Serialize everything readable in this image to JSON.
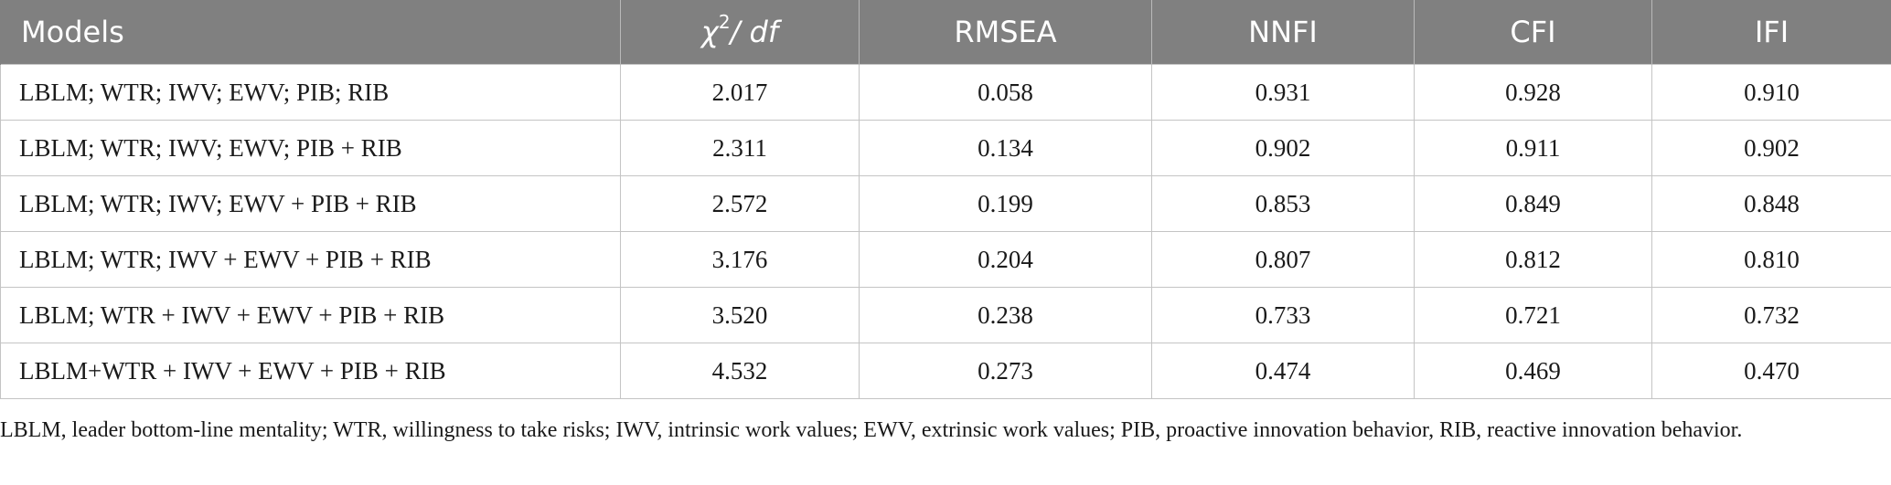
{
  "table": {
    "headers": {
      "models": "Models",
      "chi_symbol": "χ",
      "chi_power": "2",
      "chi_rest": "/ df",
      "rmsea": "RMSEA",
      "nnfi": "NNFI",
      "cfi": "CFI",
      "ifi": "IFI"
    },
    "rows": [
      {
        "model": "LBLM; WTR; IWV; EWV; PIB; RIB",
        "chi_df": "2.017",
        "rmsea": "0.058",
        "nnfi": "0.931",
        "cfi": "0.928",
        "ifi": "0.910"
      },
      {
        "model": "LBLM; WTR; IWV; EWV; PIB + RIB",
        "chi_df": "2.311",
        "rmsea": "0.134",
        "nnfi": "0.902",
        "cfi": "0.911",
        "ifi": "0.902"
      },
      {
        "model": "LBLM; WTR; IWV; EWV + PIB + RIB",
        "chi_df": "2.572",
        "rmsea": "0.199",
        "nnfi": "0.853",
        "cfi": "0.849",
        "ifi": "0.848"
      },
      {
        "model": "LBLM; WTR; IWV + EWV + PIB + RIB",
        "chi_df": "3.176",
        "rmsea": "0.204",
        "nnfi": "0.807",
        "cfi": "0.812",
        "ifi": "0.810"
      },
      {
        "model": "LBLM; WTR + IWV + EWV + PIB + RIB",
        "chi_df": "3.520",
        "rmsea": "0.238",
        "nnfi": "0.733",
        "cfi": "0.721",
        "ifi": "0.732"
      },
      {
        "model": "LBLM+WTR + IWV + EWV + PIB + RIB",
        "chi_df": "4.532",
        "rmsea": "0.273",
        "nnfi": "0.474",
        "cfi": "0.469",
        "ifi": "0.470"
      }
    ]
  },
  "footnote": "LBLM, leader bottom-line mentality; WTR, willingness to take risks; IWV, intrinsic work values; EWV, extrinsic work values; PIB, proactive innovation behavior, RIB, reactive innovation behavior."
}
